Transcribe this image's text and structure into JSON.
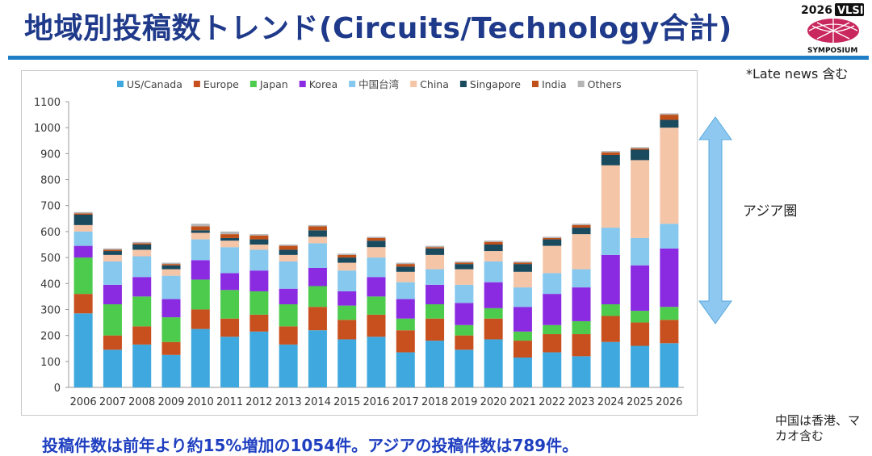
{
  "slide": {
    "title": "地域別投稿数トレンド(Circuits/Technology合計)",
    "late_note": "*Late news 含む",
    "asia_label": "アジア圏",
    "footer": "投稿件数は前年より約15%増加の1054件。アジアの投稿件数は789件。",
    "china_note": "中国は香港、マカオ含む",
    "logo_year": "2026",
    "logo_brand": "VLSI",
    "logo_sub": "SYMPOSIUM",
    "accent_color": "#1e7fc8",
    "title_color": "#1f3a8a",
    "arrow_color": "#8ec8f0"
  },
  "chart_data": {
    "type": "bar",
    "stacked": true,
    "ylim": [
      0,
      1100
    ],
    "yticks": [
      0,
      100,
      200,
      300,
      400,
      500,
      600,
      700,
      800,
      900,
      1000,
      1100
    ],
    "grid": false,
    "legend_position": "top",
    "categories": [
      "2006",
      "2007",
      "2008",
      "2009",
      "2010",
      "2011",
      "2012",
      "2013",
      "2014",
      "2015",
      "2016",
      "2017",
      "2018",
      "2019",
      "2020",
      "2021",
      "2022",
      "2023",
      "2024",
      "2025",
      "2026"
    ],
    "series": [
      {
        "name": "US/Canada",
        "color": "#3fa9df",
        "values": [
          285,
          145,
          165,
          125,
          225,
          195,
          215,
          165,
          220,
          185,
          195,
          135,
          180,
          145,
          185,
          115,
          135,
          120,
          175,
          160,
          170
        ]
      },
      {
        "name": "Europe",
        "color": "#c8501e",
        "values": [
          75,
          55,
          70,
          50,
          75,
          70,
          65,
          70,
          90,
          75,
          85,
          85,
          85,
          55,
          80,
          65,
          70,
          85,
          100,
          90,
          90
        ]
      },
      {
        "name": "Japan",
        "color": "#4ccb4c",
        "values": [
          140,
          120,
          115,
          95,
          115,
          110,
          90,
          85,
          80,
          55,
          70,
          45,
          55,
          40,
          40,
          35,
          35,
          50,
          45,
          45,
          50
        ]
      },
      {
        "name": "Korea",
        "color": "#8a2be2",
        "values": [
          45,
          75,
          75,
          70,
          75,
          65,
          80,
          60,
          70,
          55,
          75,
          75,
          75,
          85,
          100,
          95,
          120,
          130,
          190,
          175,
          225
        ]
      },
      {
        "name": "中国台湾",
        "color": "#86c8ee",
        "values": [
          55,
          90,
          80,
          90,
          80,
          100,
          80,
          105,
          95,
          80,
          75,
          65,
          60,
          70,
          80,
          75,
          80,
          70,
          105,
          105,
          95
        ]
      },
      {
        "name": "China",
        "color": "#f5c5a8",
        "values": [
          25,
          25,
          25,
          25,
          25,
          25,
          20,
          25,
          25,
          30,
          40,
          40,
          55,
          60,
          40,
          60,
          105,
          135,
          240,
          300,
          370
        ]
      },
      {
        "name": "Singapore",
        "color": "#1a4a5e",
        "values": [
          40,
          15,
          20,
          15,
          10,
          10,
          20,
          20,
          25,
          20,
          25,
          20,
          25,
          20,
          25,
          30,
          25,
          25,
          40,
          40,
          30
        ]
      },
      {
        "name": "India",
        "color": "#c0501a",
        "values": [
          5,
          5,
          5,
          5,
          15,
          15,
          15,
          15,
          15,
          10,
          10,
          10,
          5,
          5,
          10,
          5,
          5,
          10,
          10,
          5,
          20
        ]
      },
      {
        "name": "Others",
        "color": "#b4b4b4",
        "values": [
          5,
          5,
          5,
          5,
          10,
          10,
          5,
          5,
          5,
          5,
          5,
          5,
          5,
          5,
          5,
          5,
          5,
          5,
          5,
          5,
          5
        ]
      }
    ]
  }
}
